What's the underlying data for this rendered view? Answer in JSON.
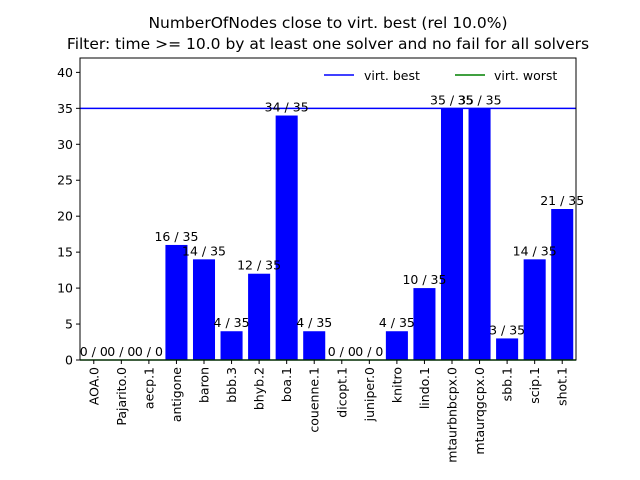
{
  "chart_data": {
    "type": "bar",
    "title_line1": "NumberOfNodes close to virt. best (rel 10.0%)",
    "title_line2": "Filter: time >= 10.0 by at least one solver and no fail for all solvers",
    "xlabel": "",
    "ylabel": "",
    "ylim": [
      0,
      42
    ],
    "yticks": [
      0,
      5,
      10,
      15,
      20,
      25,
      30,
      35,
      40
    ],
    "grid": false,
    "categories": [
      "AOA.0",
      "Pajarito.0",
      "aecp.1",
      "antigone",
      "baron",
      "bbb.3",
      "bhyb.2",
      "boa.1",
      "couenne.1",
      "dicopt.1",
      "juniper.0",
      "knitro",
      "lindo.1",
      "mtaurbnbcpx.0",
      "mtaurqgcpx.0",
      "sbb.1",
      "scip.1",
      "shot.1"
    ],
    "values": [
      0,
      0,
      0,
      16,
      14,
      4,
      12,
      34,
      4,
      0,
      0,
      4,
      10,
      35,
      35,
      3,
      14,
      21
    ],
    "data_labels": [
      "0 / 0",
      "0 / 0",
      "0 / 0",
      "16 / 35",
      "14 / 35",
      "4 / 35",
      "12 / 35",
      "34 / 35",
      "4 / 35",
      "0 / 0",
      "0 / 0",
      "4 / 35",
      "10 / 35",
      "35 / 35",
      "35 / 35",
      "3 / 35",
      "14 / 35",
      "21 / 35"
    ],
    "bar_color": "#0000ff",
    "reference_lines": [
      {
        "name": "virt. best",
        "value": 35,
        "color": "#0000ff"
      },
      {
        "name": "virt. worst",
        "value": 0,
        "color": "#008000"
      }
    ],
    "legend_placement": "top-right"
  }
}
